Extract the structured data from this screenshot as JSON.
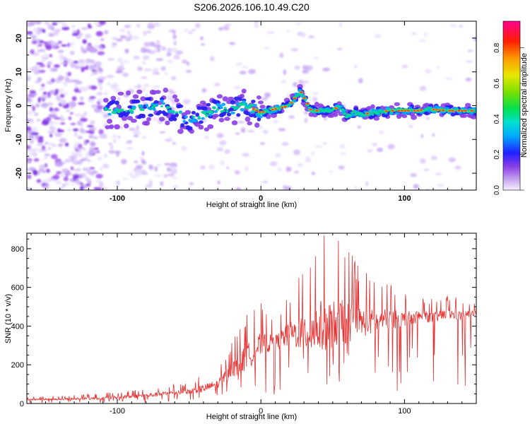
{
  "title": "S206.2026.106.10.49.C20",
  "colors": {
    "snr_line": "#e83030",
    "frame": "#000000"
  },
  "chart_data": [
    {
      "type": "heatmap",
      "xlabel": "Height of straight line (km)",
      "ylabel": "Frequency (Hz)",
      "xlim": [
        -163,
        150
      ],
      "ylim": [
        -25,
        25
      ],
      "xticks": [
        -100,
        0,
        100
      ],
      "yticks": [
        -20,
        -10,
        0,
        10,
        20
      ],
      "ridge": {
        "x": [
          -108,
          -100,
          -90,
          -80,
          -70,
          -60,
          -50,
          -40,
          -30,
          -20,
          -10,
          0,
          10,
          20,
          25,
          28,
          35,
          45,
          55,
          60,
          65,
          70,
          80,
          90,
          100,
          110,
          115,
          130,
          148
        ],
        "freq": [
          -1.5,
          -1.5,
          -1.0,
          -0.5,
          0.5,
          -2.0,
          -4.0,
          -2.5,
          -1.0,
          -1.0,
          0.0,
          -2.0,
          -1.0,
          0.0,
          3.0,
          4.0,
          -1.5,
          -1.5,
          -0.5,
          -3.0,
          -2.0,
          -2.5,
          -2.0,
          -1.5,
          -1.5,
          -1.5,
          -1.0,
          -1.5,
          -1.5
        ]
      },
      "colorbar": {
        "label": "Normalized spectral amplitude",
        "range": [
          0.0,
          0.95
        ],
        "ticks": [
          0.0,
          0.2,
          0.4,
          0.6,
          0.8
        ]
      }
    },
    {
      "type": "line",
      "xlabel": "Height of straight line (km)",
      "ylabel": "SNR (10 * v/v)",
      "xlim": [
        -163,
        150
      ],
      "ylim": [
        0,
        880
      ],
      "xticks": [
        -100,
        0,
        100
      ],
      "yticks": [
        0,
        200,
        400,
        600,
        800
      ],
      "series": [
        {
          "name": "SNR",
          "x": [
            -163,
            -140,
            -120,
            -100,
            -80,
            -60,
            -50,
            -40,
            -30,
            -20,
            -10,
            0,
            10,
            20,
            30,
            40,
            50,
            60,
            70,
            80,
            90,
            100,
            110,
            120,
            130,
            140,
            150
          ],
          "base": [
            20,
            22,
            25,
            30,
            40,
            55,
            60,
            75,
            100,
            170,
            230,
            300,
            310,
            350,
            360,
            380,
            400,
            410,
            410,
            420,
            430,
            430,
            450,
            440,
            460,
            450,
            470
          ],
          "peak": [
            35,
            40,
            50,
            60,
            80,
            100,
            110,
            150,
            180,
            320,
            480,
            520,
            450,
            580,
            720,
            880,
            860,
            820,
            700,
            640,
            620,
            580,
            560,
            540,
            560,
            540,
            520
          ]
        }
      ]
    }
  ]
}
